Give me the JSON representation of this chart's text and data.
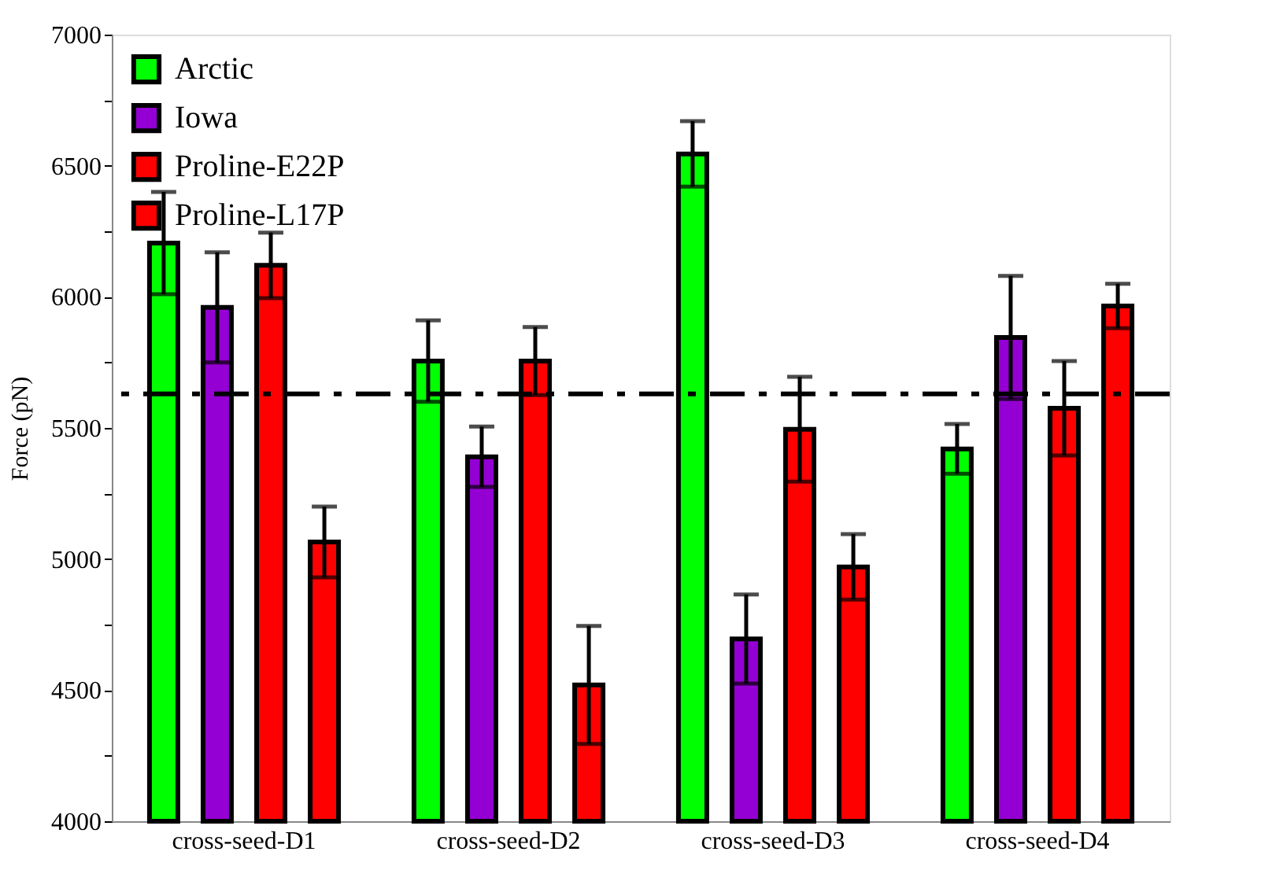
{
  "chart_data": {
    "type": "bar",
    "ylabel": "Force (pN)",
    "categories": [
      "cross-seed-D1",
      "cross-seed-D2",
      "cross-seed-D3",
      "cross-seed-D4"
    ],
    "series": [
      {
        "name": "Arctic",
        "color": "#00ff00",
        "values": [
          6205,
          5755,
          6545,
          5420
        ],
        "errors": [
          195,
          155,
          125,
          95
        ]
      },
      {
        "name": "Iowa",
        "color": "#9400d3",
        "values": [
          5960,
          5390,
          4695,
          5845
        ],
        "errors": [
          210,
          115,
          170,
          235
        ]
      },
      {
        "name": "Proline-E22P",
        "color": "#ff0000",
        "values": [
          6120,
          5755,
          5495,
          5575
        ],
        "errors": [
          125,
          130,
          200,
          180
        ]
      },
      {
        "name": "Proline-L17P",
        "color": "#ff0000",
        "values": [
          5065,
          4520,
          4970,
          5965
        ],
        "errors": [
          135,
          225,
          125,
          85
        ]
      }
    ],
    "ylim": [
      4000,
      7000
    ],
    "yticks": [
      4000,
      {
        "value": 4250,
        "label": null
      },
      4500,
      {
        "value": 4750,
        "label": null
      },
      5000,
      {
        "value": 5250,
        "label": null
      },
      5500,
      {
        "value": 5750,
        "label": null
      },
      6000,
      {
        "value": 6250,
        "label": null
      },
      6500,
      {
        "value": 6750,
        "label": null
      },
      7000
    ],
    "ref_lines": [
      {
        "axis": "y",
        "value": 5630,
        "line_style": "dashdot",
        "color": "#000000"
      }
    ],
    "legend": "top left",
    "grid": false
  }
}
